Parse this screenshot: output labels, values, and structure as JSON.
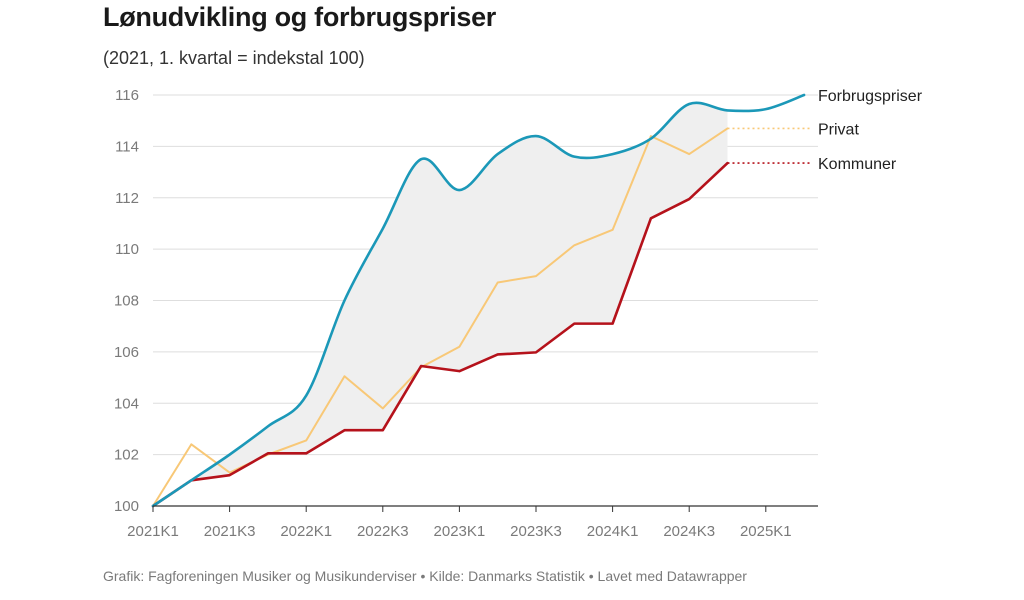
{
  "header": {
    "title": "Lønudvikling og forbrugspriser",
    "subtitle": "(2021, 1. kvartal = indekstal 100)"
  },
  "footer": {
    "text": "Grafik: Fagforeningen Musiker og Musikunderviser  • Kilde: Danmarks Statistik • Lavet med Datawrapper"
  },
  "chart_data": {
    "type": "line",
    "title": "Lønudvikling og forbrugspriser",
    "subtitle": "(2021, 1. kvartal = indekstal 100)",
    "xlabel": "",
    "ylabel": "",
    "x": [
      "2021K1",
      "2021K2",
      "2021K3",
      "2021K4",
      "2022K1",
      "2022K2",
      "2022K3",
      "2022K4",
      "2023K1",
      "2023K2",
      "2023K3",
      "2023K4",
      "2024K1",
      "2024K2",
      "2024K3",
      "2024K4",
      "2025K1",
      "2025K2"
    ],
    "x_tick_labels": [
      "2021K1",
      "2021K3",
      "2022K1",
      "2022K3",
      "2023K1",
      "2023K3",
      "2024K1",
      "2024K3",
      "2025K1"
    ],
    "ylim": [
      100,
      116
    ],
    "y_ticks": [
      "100",
      "102",
      "104",
      "106",
      "108",
      "110",
      "112",
      "114",
      "116"
    ],
    "grid": true,
    "legend": "right, labels at line ends",
    "shaded_band": {
      "between": [
        "Forbrugspriser",
        "Kommuner"
      ],
      "color": "#efefef"
    },
    "series": [
      {
        "name": "Forbrugspriser",
        "color": "#1b98b8",
        "values": [
          100,
          101.0,
          102.0,
          103.1,
          104.3,
          108.0,
          110.8,
          113.5,
          112.3,
          113.7,
          114.4,
          113.6,
          113.7,
          114.3,
          115.65,
          115.4,
          115.45,
          116.0
        ]
      },
      {
        "name": "Privat",
        "color": "#f8c877",
        "values": [
          100,
          102.4,
          101.3,
          102.0,
          102.55,
          105.05,
          103.8,
          105.4,
          106.2,
          108.7,
          108.95,
          110.15,
          110.75,
          114.4,
          113.7,
          114.7,
          null,
          null
        ]
      },
      {
        "name": "Kommuner",
        "color": "#b5121b",
        "values": [
          100,
          101.0,
          101.2,
          102.05,
          102.05,
          102.95,
          102.95,
          105.45,
          105.25,
          105.9,
          105.98,
          107.1,
          107.1,
          111.2,
          111.95,
          113.35,
          null,
          null
        ]
      }
    ]
  }
}
